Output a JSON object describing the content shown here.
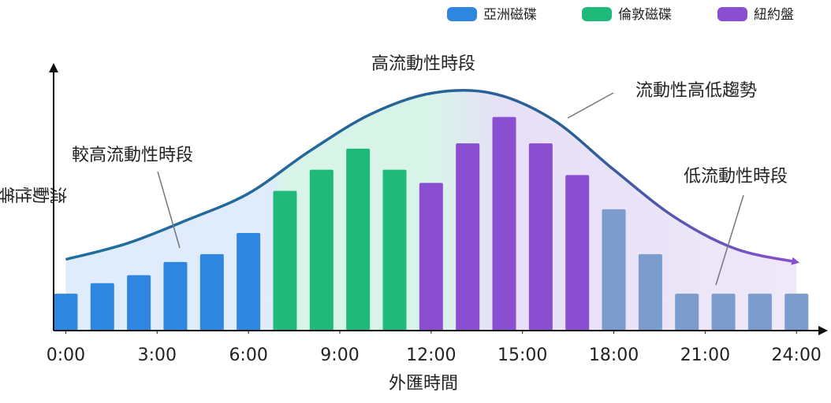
{
  "chart_data": {
    "type": "bar",
    "xlabel": "外匯時間",
    "ylabel": "流動性等級",
    "xlim": [
      -0.4,
      24.9
    ],
    "ylim": [
      0,
      10
    ],
    "xticks": [
      {
        "value": 0,
        "label": "0:00"
      },
      {
        "value": 3,
        "label": "3:00"
      },
      {
        "value": 6,
        "label": "6:00"
      },
      {
        "value": 9,
        "label": "9:00"
      },
      {
        "value": 12,
        "label": "12:00"
      },
      {
        "value": 15,
        "label": "15:00"
      },
      {
        "value": 18,
        "label": "18:00"
      },
      {
        "value": 21,
        "label": "21:00"
      },
      {
        "value": 24,
        "label": "24:00"
      }
    ],
    "series": [
      {
        "name": "亞洲磁碟",
        "color": "#2e86e0",
        "x": [
          0,
          1.2,
          2.4,
          3.6,
          4.8,
          6.0
        ],
        "values": [
          1.4,
          1.8,
          2.1,
          2.6,
          2.9,
          3.7
        ]
      },
      {
        "name": "倫敦磁碟",
        "color": "#1fb97a",
        "x": [
          7.2,
          8.4,
          9.6,
          10.8
        ],
        "values": [
          5.3,
          6.1,
          6.9,
          6.1
        ]
      },
      {
        "name": "紐約盤",
        "color": "#8a4fd0",
        "x": [
          12.0,
          13.2,
          14.4,
          15.6,
          16.8
        ],
        "values": [
          5.6,
          7.1,
          8.1,
          7.1,
          5.9
        ]
      },
      {
        "color": "#7b9ccc",
        "x": [
          18.0,
          19.2,
          20.4,
          21.6,
          22.8,
          24.0
        ],
        "values": [
          4.6,
          2.9,
          1.4,
          1.4,
          1.4,
          1.4
        ]
      }
    ],
    "trend": {
      "label": "流動性高低趨勢",
      "x": [
        0,
        2,
        4,
        6,
        8,
        10,
        12,
        14,
        16,
        18,
        20,
        22,
        24
      ],
      "values": [
        2.7,
        3.3,
        4.2,
        5.2,
        6.8,
        8.2,
        9.0,
        9.0,
        8.0,
        6.1,
        4.3,
        3.1,
        2.6
      ]
    },
    "annotations": [
      "高流動性時段",
      "較高流動性時段",
      "低流動性時段"
    ]
  }
}
